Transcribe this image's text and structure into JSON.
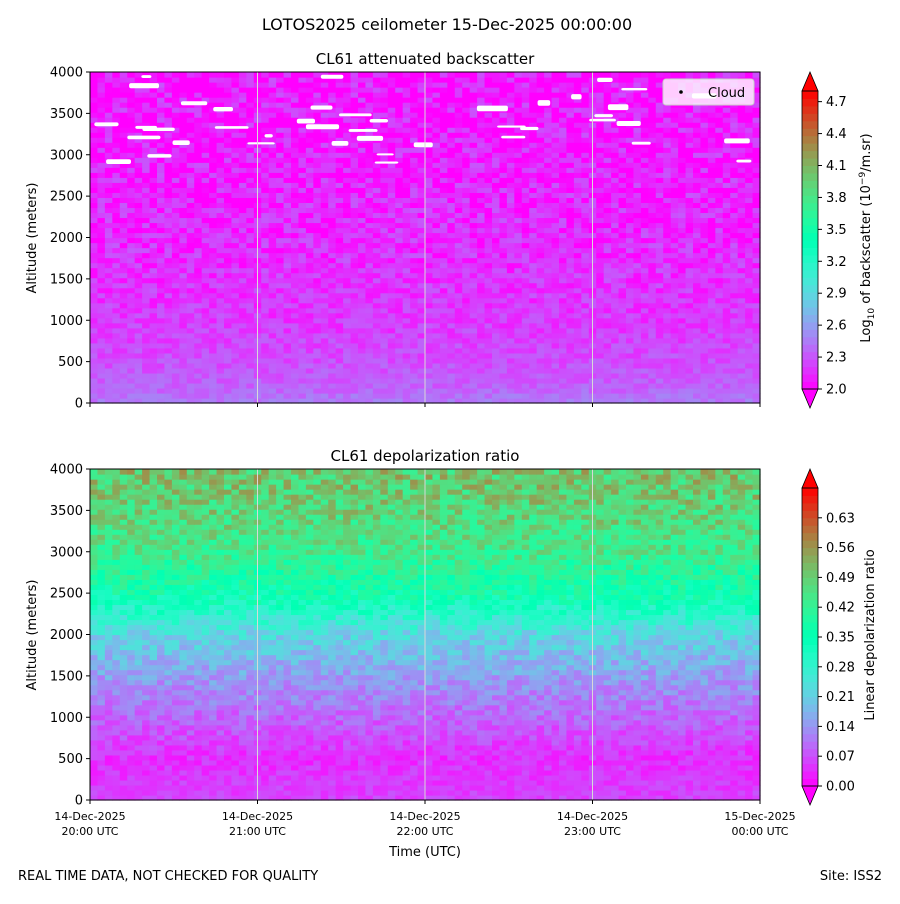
{
  "figure_title": "LOTOS2025 ceilometer 15-Dec-2025 00:00:00",
  "footer": {
    "left": "REAL TIME DATA, NOT CHECKED FOR QUALITY",
    "right": "Site: ISS2"
  },
  "chart_data": [
    {
      "type": "heatmap",
      "title": "CL61 attenuated backscatter",
      "xlabel": "",
      "ylabel": "Altitude (meters)",
      "x_range": [
        "14-Dec-2025 20:00 UTC",
        "15-Dec-2025 00:00 UTC"
      ],
      "x_ticks": [
        {
          "date": "14-Dec-2025",
          "time": "20:00 UTC"
        },
        {
          "date": "14-Dec-2025",
          "time": "21:00 UTC"
        },
        {
          "date": "14-Dec-2025",
          "time": "22:00 UTC"
        },
        {
          "date": "14-Dec-2025",
          "time": "23:00 UTC"
        },
        {
          "date": "15-Dec-2025",
          "time": "00:00 UTC"
        }
      ],
      "x_tick_labels_shown": false,
      "y_ticks": [
        0,
        500,
        1000,
        1500,
        2000,
        2500,
        3000,
        3500,
        4000
      ],
      "ylim": [
        0,
        4000
      ],
      "grid": "vertical lines at hourly ticks",
      "legend": {
        "placement": "upper right",
        "entries": [
          "Cloud"
        ]
      },
      "colorbar": {
        "label_prefix": "Log",
        "label_sub": "10",
        "label_mid": " of backscatter (10",
        "label_sup": "−9",
        "label_suffix": "/m.sr)",
        "colormap": "rainbow",
        "min": 2.0,
        "max": 4.8,
        "ticks": [
          2.0,
          2.3,
          2.6,
          2.9,
          3.2,
          3.5,
          3.8,
          4.1,
          4.4,
          4.7
        ],
        "extend": "both"
      },
      "profile": [
        {
          "altitude": 0,
          "value": 2.45
        },
        {
          "altitude": 200,
          "value": 2.35
        },
        {
          "altitude": 500,
          "value": 2.28
        },
        {
          "altitude": 1000,
          "value": 2.2
        },
        {
          "altitude": 2000,
          "value": 2.15
        },
        {
          "altitude": 3000,
          "value": 2.08
        },
        {
          "altitude": 4000,
          "value": 2.03
        }
      ],
      "cloud_mask_note": "white patches (no data) scattered above ~2800 m"
    },
    {
      "type": "heatmap",
      "title": "CL61 depolarization ratio",
      "xlabel": "Time (UTC)",
      "ylabel": "Altitude (meters)",
      "x_range": [
        "14-Dec-2025 20:00 UTC",
        "15-Dec-2025 00:00 UTC"
      ],
      "x_ticks": [
        {
          "date": "14-Dec-2025",
          "time": "20:00 UTC"
        },
        {
          "date": "14-Dec-2025",
          "time": "21:00 UTC"
        },
        {
          "date": "14-Dec-2025",
          "time": "22:00 UTC"
        },
        {
          "date": "14-Dec-2025",
          "time": "23:00 UTC"
        },
        {
          "date": "15-Dec-2025",
          "time": "00:00 UTC"
        }
      ],
      "x_tick_labels_shown": true,
      "y_ticks": [
        0,
        500,
        1000,
        1500,
        2000,
        2500,
        3000,
        3500,
        4000
      ],
      "ylim": [
        0,
        4000
      ],
      "grid": "vertical lines at hourly ticks",
      "colorbar": {
        "label": "Linear depolarization ratio",
        "colormap": "rainbow",
        "min": 0.0,
        "max": 0.7,
        "ticks": [
          0.0,
          0.07,
          0.14,
          0.21,
          0.28,
          0.35,
          0.42,
          0.49,
          0.56,
          0.63
        ],
        "extend": "both"
      },
      "profile": [
        {
          "altitude": 0,
          "value": 0.06
        },
        {
          "altitude": 500,
          "value": 0.04
        },
        {
          "altitude": 1000,
          "value": 0.09
        },
        {
          "altitude": 1500,
          "value": 0.15
        },
        {
          "altitude": 2000,
          "value": 0.22
        },
        {
          "altitude": 2500,
          "value": 0.36
        },
        {
          "altitude": 3000,
          "value": 0.44
        },
        {
          "altitude": 3500,
          "value": 0.48
        },
        {
          "altitude": 4000,
          "value": 0.5
        }
      ]
    }
  ]
}
